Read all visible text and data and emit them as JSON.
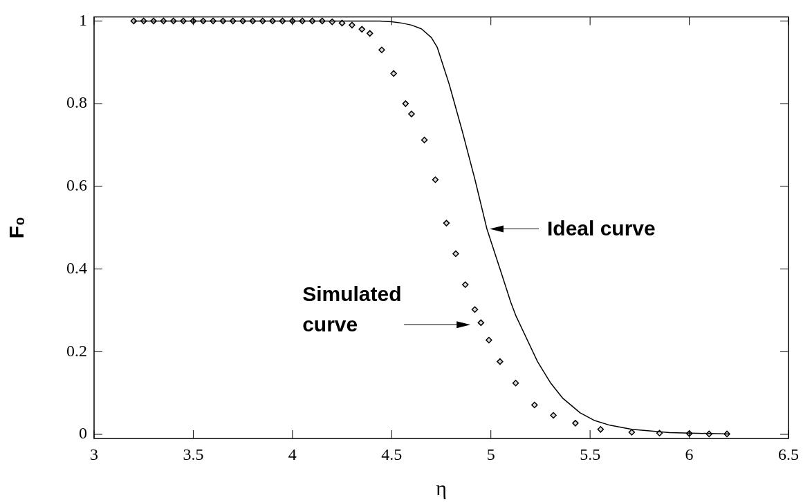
{
  "chart_data": {
    "type": "line",
    "xlabel": "η",
    "ylabel": "F₀",
    "xlim": [
      3,
      6.5
    ],
    "ylim": [
      -0.01,
      1.01
    ],
    "xticks": [
      3,
      3.5,
      4,
      4.5,
      5,
      5.5,
      6,
      6.5
    ],
    "yticks": [
      0,
      0.2,
      0.4,
      0.6,
      0.8,
      1
    ],
    "series": [
      {
        "color": "#000000",
        "marker": "none",
        "x": [
          3.2,
          4.0,
          4.44,
          4.5,
          4.55,
          4.6,
          4.65,
          4.7,
          4.73,
          4.79,
          4.855,
          4.92,
          4.98,
          5.046,
          5.1,
          5.125,
          5.235,
          5.3,
          5.363,
          5.45,
          5.52,
          5.6,
          5.71,
          5.9,
          6.2
        ],
        "values": [
          1,
          1,
          1,
          0.998,
          0.995,
          0.99,
          0.981,
          0.96,
          0.936,
          0.847,
          0.735,
          0.616,
          0.497,
          0.4,
          0.32,
          0.288,
          0.176,
          0.125,
          0.087,
          0.052,
          0.034,
          0.022,
          0.012,
          0.004,
          0.001
        ]
      },
      {
        "type": "scatter",
        "color": "#000000",
        "marker": "diamond",
        "x": [
          3.2,
          3.25,
          3.3,
          3.35,
          3.4,
          3.45,
          3.5,
          3.55,
          3.6,
          3.65,
          3.7,
          3.75,
          3.8,
          3.85,
          3.9,
          3.95,
          4.0,
          4.05,
          4.1,
          4.15,
          4.2,
          4.25,
          4.3,
          4.35,
          4.39,
          4.45,
          4.51,
          4.57,
          4.6,
          4.665,
          4.72,
          4.776,
          4.823,
          4.871,
          4.919,
          4.95,
          4.99,
          5.046,
          5.125,
          5.22,
          5.315,
          5.426,
          5.553,
          5.71,
          5.85,
          6.0,
          6.1,
          6.19
        ],
        "values": [
          1,
          1,
          1,
          1,
          1,
          1,
          1,
          1,
          1,
          1,
          1,
          1,
          1,
          1,
          1,
          1,
          1,
          1,
          1,
          1,
          0.998,
          0.995,
          0.99,
          0.98,
          0.97,
          0.93,
          0.873,
          0.8,
          0.775,
          0.712,
          0.616,
          0.511,
          0.437,
          0.362,
          0.302,
          0.27,
          0.228,
          0.176,
          0.124,
          0.071,
          0.046,
          0.027,
          0.012,
          0.005,
          0.003,
          0.002,
          0.001,
          0.001
        ]
      }
    ],
    "annotations": [
      {
        "text": "Ideal curve",
        "x": 4.98,
        "y": 0.497
      },
      "Simulated\ncurve"
    ]
  }
}
